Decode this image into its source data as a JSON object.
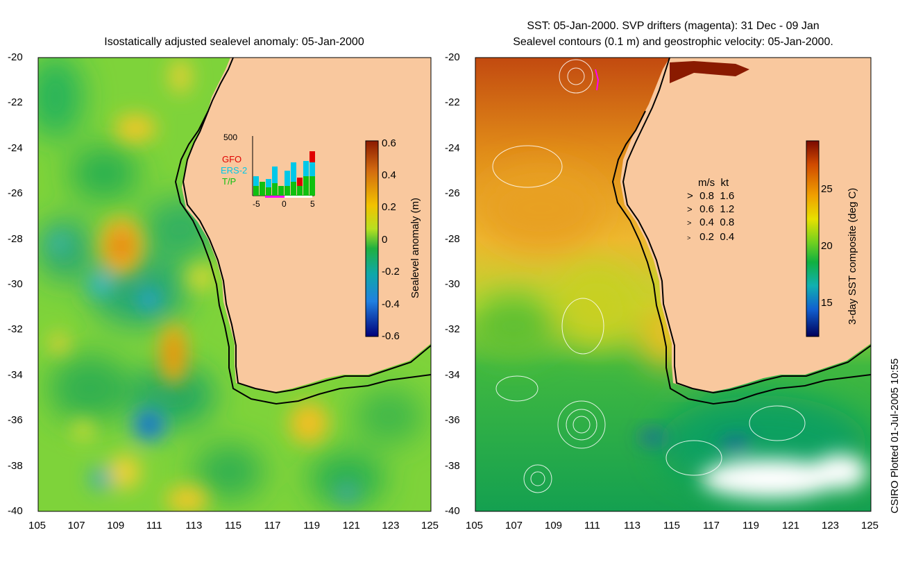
{
  "left_panel": {
    "title": "Isostatically adjusted sealevel anomaly: 05-Jan-2000",
    "colorbar_label": "Sealevel anomaly (m)",
    "colorbar_ticks": [
      "0.6",
      "0.4",
      "0.2",
      "0",
      "-0.2",
      "-0.4",
      "-0.6"
    ],
    "inset": {
      "ymax_label": "500",
      "legend": [
        {
          "name": "GFO",
          "color": "#e00000"
        },
        {
          "name": "ERS-2",
          "color": "#00c8e8"
        },
        {
          "name": "T/P",
          "color": "#10c010"
        }
      ],
      "x_ticks": [
        "-5",
        "0",
        "5"
      ]
    }
  },
  "right_panel": {
    "title_line1": "SST: 05-Jan-2000. SVP drifters (magenta): 31 Dec - 09 Jan",
    "title_line2": "Sealevel contours (0.1 m) and geostrophic velocity: 05-Jan-2000.",
    "colorbar_label": "3-day SST composite (deg C)",
    "colorbar_ticks": [
      "25",
      "20",
      "15"
    ],
    "velocity_legend": {
      "header_ms": "m/s",
      "header_kt": "kt",
      "rows": [
        {
          "ms": "0.8",
          "kt": "1.6"
        },
        {
          "ms": "0.6",
          "kt": "1.2"
        },
        {
          "ms": "0.4",
          "kt": "0.8"
        },
        {
          "ms": "0.2",
          "kt": "0.4"
        }
      ]
    }
  },
  "y_ticks": [
    "-20",
    "-22",
    "-24",
    "-26",
    "-28",
    "-30",
    "-32",
    "-34",
    "-36",
    "-38",
    "-40"
  ],
  "x_ticks": [
    "105",
    "107",
    "109",
    "111",
    "113",
    "115",
    "117",
    "119",
    "121",
    "123",
    "125"
  ],
  "footer_vertical": "CSIRO Plotted 01-Jul-2005 10:55",
  "colors": {
    "land": "#f9c89e",
    "coast": "#000000"
  }
}
